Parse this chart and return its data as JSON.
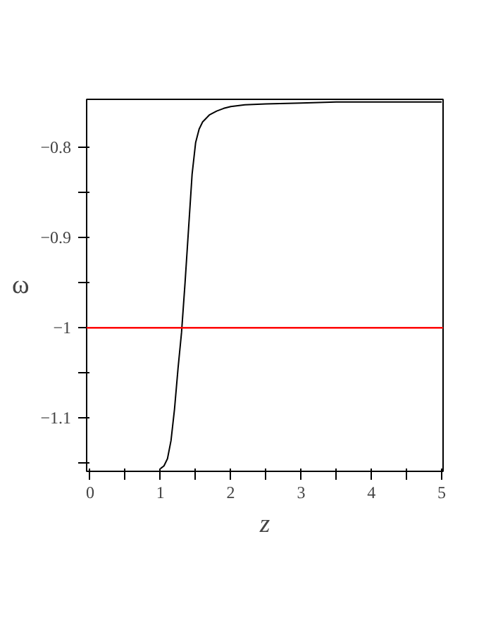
{
  "chart_data": {
    "type": "line",
    "xlabel": "z",
    "ylabel": "ω",
    "xlim": [
      -0.05,
      5.02
    ],
    "ylim": [
      -1.159,
      -0.747
    ],
    "xticks": [
      0,
      {
        "value": 0.5,
        "label": null
      },
      1,
      {
        "value": 1.5,
        "label": null
      },
      2,
      {
        "value": 2.5,
        "label": null
      },
      3,
      {
        "value": 3.5,
        "label": null
      },
      4,
      {
        "value": 4.5,
        "label": null
      },
      5
    ],
    "yticks": [
      {
        "value": -1.15,
        "label": null
      },
      -1.1,
      {
        "value": -1.05,
        "label": null
      },
      -1,
      {
        "value": -0.95,
        "label": null
      },
      -0.9,
      {
        "value": -0.85,
        "label": null
      },
      -0.8
    ],
    "grid": false,
    "marker": "none",
    "line_style": "solid",
    "series": [
      {
        "color": "#000000",
        "x": [
          1.0,
          1.05,
          1.1,
          1.15,
          1.2,
          1.25,
          1.3,
          1.35,
          1.4,
          1.45,
          1.5,
          1.55,
          1.6,
          1.7,
          1.8,
          1.9,
          2.0,
          2.2,
          2.5,
          3.0,
          3.5,
          4.0,
          4.5,
          5.0
        ],
        "values": [
          -1.156,
          -1.153,
          -1.145,
          -1.125,
          -1.09,
          -1.045,
          -1.005,
          -0.95,
          -0.89,
          -0.83,
          -0.795,
          -0.78,
          -0.772,
          -0.764,
          -0.76,
          -0.757,
          -0.755,
          -0.753,
          -0.752,
          -0.751,
          -0.75,
          -0.75,
          -0.75,
          -0.75
        ]
      }
    ],
    "ref_lines": [
      {
        "axis": "y",
        "value": -1,
        "color": "#ff0000",
        "line_style": "solid"
      }
    ]
  }
}
